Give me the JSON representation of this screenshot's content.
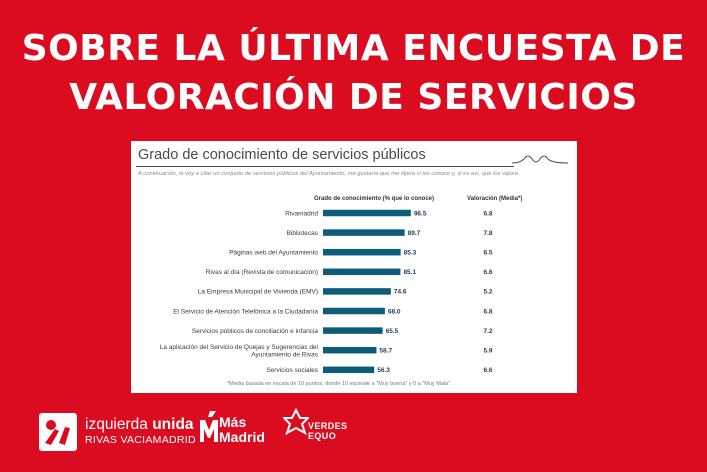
{
  "headline": {
    "line1": "SOBRE LA ÚLTIMA ENCUESTA DE",
    "line2": "VALORACIÓN DE SERVICIOS"
  },
  "chart_data": {
    "type": "bar",
    "orientation": "horizontal",
    "title": "Grado de conocimiento de servicios públicos",
    "subtitle": "A continuación, le voy a citar un conjunto de servicios públicos del Ayuntamiento, me gustaría que me dijera si los conoce y, si es así, que los valore.",
    "xlabel": "Grado de conocimiento (% que lo conoce)",
    "secondary_column": "Valoración (Media*)",
    "categories": [
      "Rivamadrid",
      "Bibliotecas",
      "Páginas web del Ayuntamiento",
      "Rivas al día (Revista de comunicación)",
      "La Empresa Municipal de Vivienda (EMV)",
      "El Servicio de Atención Telefónica a la Ciudadanía",
      "Servicios públicos de conciliación e infancia",
      "La aplicación del Servicio de Quejas y Sugerencias del Ayuntamiento de Rivas",
      "Servicios sociales"
    ],
    "category_lines": [
      [
        "Rivamadrid"
      ],
      [
        "Bibliotecas"
      ],
      [
        "Páginas web del Ayuntamiento"
      ],
      [
        "Rivas al día (Revista de comunicación)"
      ],
      [
        "La Empresa Municipal de Vivienda (EMV)"
      ],
      [
        "El Servicio de Atención Telefónica a la Ciudadanía"
      ],
      [
        "Servicios públicos de conciliación e infancia"
      ],
      [
        "La aplicación del Servicio de Quejas y Sugerencias del",
        "Ayuntamiento de Rivas"
      ],
      [
        "Servicios sociales"
      ]
    ],
    "values": [
      96.5,
      89.7,
      85.3,
      85.1,
      74.6,
      68.0,
      65.5,
      58.7,
      56.3
    ],
    "value_labels": [
      "96.5",
      "89.7",
      "85.3",
      "85.1",
      "74.6",
      "68.0",
      "65.5",
      "58.7",
      "56.3"
    ],
    "ratings": [
      "6.8",
      "7.8",
      "6.5",
      "6.6",
      "5.2",
      "6.8",
      "7.2",
      "5.9",
      "6.6"
    ],
    "xlim": [
      0,
      100
    ],
    "bar_color": "#0e5c7a",
    "footnote": "*Media basada en escala de 10 puntos, donde 10 equivale a \"Muy buena\" y 0 a \"Muy Mala\"."
  },
  "logos": {
    "iu": {
      "name_regular": "izquierda ",
      "name_bold": "unida",
      "sub": "RIVAS VACIAMADRID"
    },
    "mas_madrid": {
      "line1": "Más",
      "line2": "Madrid"
    },
    "verdes_equo": {
      "line1": "VERDES",
      "line2": "EQUO"
    }
  },
  "colors": {
    "background": "#dc0c20",
    "text": "#ffffff"
  }
}
